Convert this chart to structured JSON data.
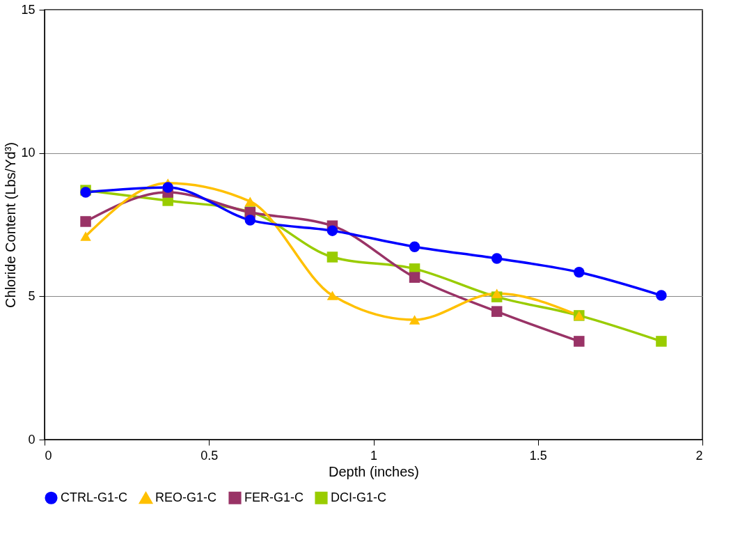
{
  "chart_data": {
    "type": "line",
    "xlabel": "Depth (inches)",
    "ylabel": "Chloride Content (Lbs/Yd³)",
    "xlim": [
      0,
      2
    ],
    "xticks": [
      0,
      0.5,
      1,
      1.5,
      2
    ],
    "ylim": [
      0,
      15
    ],
    "yticks": [
      0,
      5,
      10,
      15
    ],
    "grid": "y",
    "legend": "bottom",
    "series": [
      {
        "name": "CTRL-G1-C",
        "color": "#0000ff",
        "marker": "circle",
        "x": [
          0.125,
          0.375,
          0.625,
          0.875,
          1.125,
          1.375,
          1.625,
          1.875
        ],
        "values": [
          8.63,
          8.8,
          7.66,
          7.29,
          6.73,
          6.32,
          5.84,
          5.03
        ]
      },
      {
        "name": "REO-G1-C",
        "color": "#ffc000",
        "marker": "triangle",
        "x": [
          0.125,
          0.375,
          0.625,
          0.875,
          1.125,
          1.375,
          1.625
        ],
        "values": [
          7.1,
          8.95,
          8.31,
          5.03,
          4.18,
          5.1,
          4.33
        ]
      },
      {
        "name": "FER-G1-C",
        "color": "#993366",
        "marker": "square",
        "x": [
          0.125,
          0.375,
          0.625,
          0.875,
          1.125,
          1.375,
          1.625
        ],
        "values": [
          7.61,
          8.63,
          7.93,
          7.46,
          5.66,
          4.47,
          3.43
        ]
      },
      {
        "name": "DCI-G1-C",
        "color": "#99cc00",
        "marker": "square",
        "x": [
          0.125,
          0.375,
          0.625,
          0.875,
          1.125,
          1.375,
          1.625,
          1.875
        ],
        "values": [
          8.7,
          8.34,
          7.95,
          6.37,
          5.96,
          4.98,
          4.33,
          3.43
        ]
      }
    ]
  }
}
